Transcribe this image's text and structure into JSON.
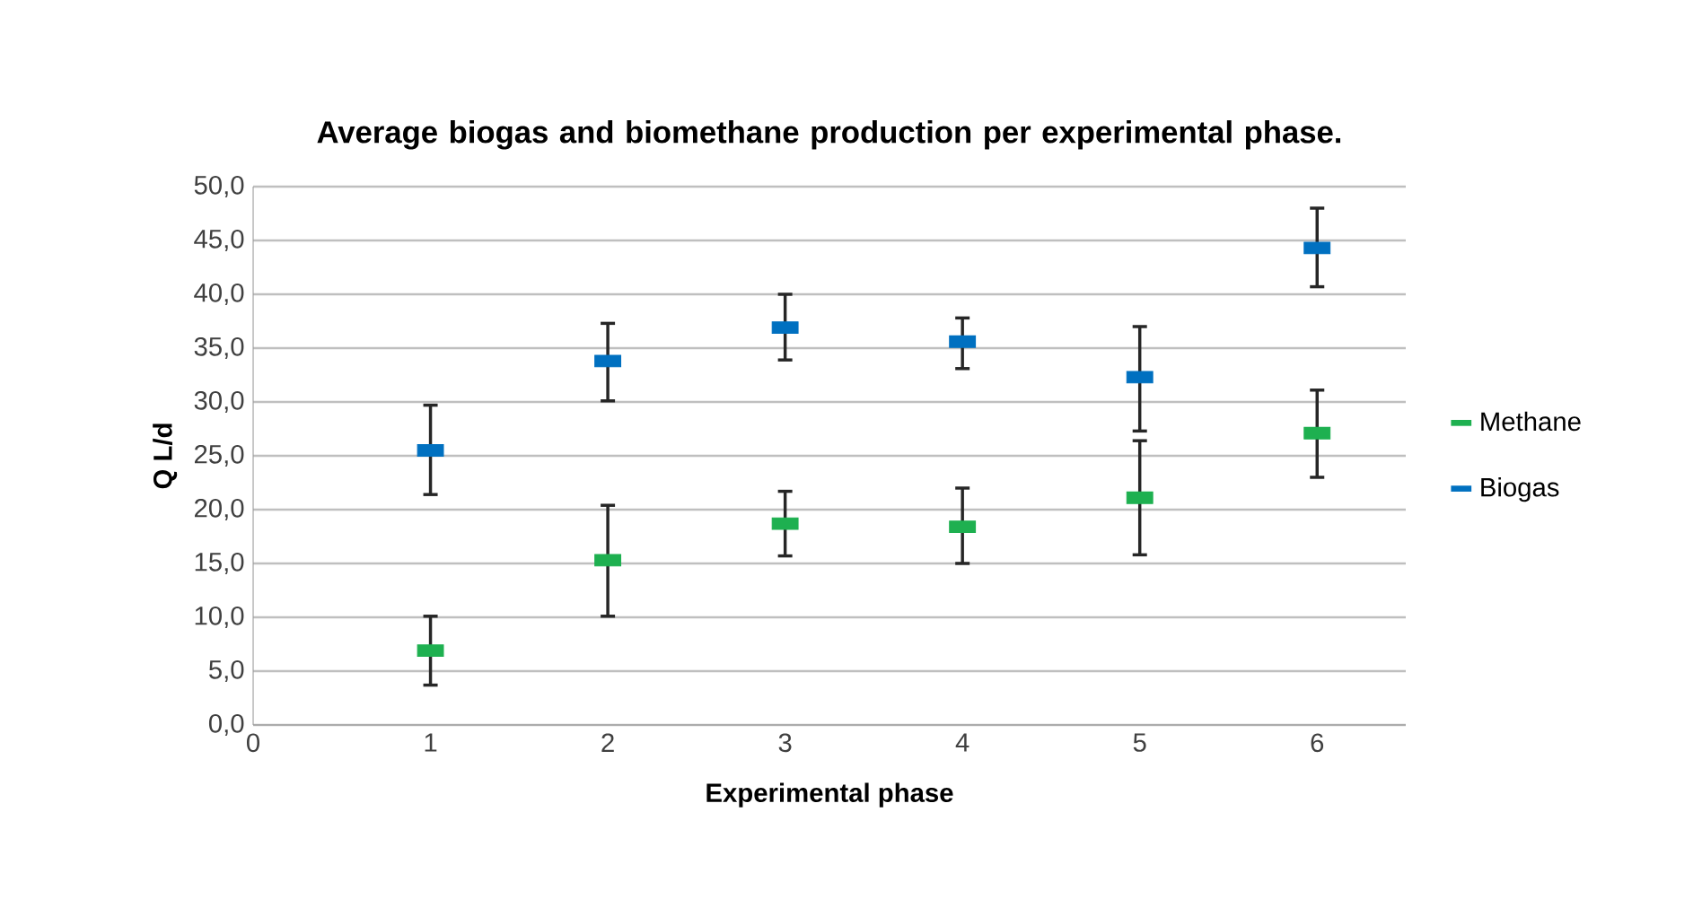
{
  "chart_data": {
    "type": "scatter",
    "title": "Average biogas and biomethane production per experimental phase.",
    "xlabel": "Experimental phase",
    "ylabel": "Q L/d",
    "x": [
      1,
      2,
      3,
      4,
      5,
      6
    ],
    "series": [
      {
        "name": "Methane",
        "color": "#1eb050",
        "values": [
          6.9,
          15.3,
          18.7,
          18.4,
          21.1,
          27.1
        ],
        "errors": [
          [
            3.7,
            10.1
          ],
          [
            10.1,
            20.4
          ],
          [
            15.7,
            21.7
          ],
          [
            15.0,
            22.0
          ],
          [
            15.8,
            26.4
          ],
          [
            23.0,
            31.1
          ]
        ]
      },
      {
        "name": "Biogas",
        "color": "#0070c0",
        "values": [
          25.5,
          33.8,
          36.9,
          35.6,
          32.3,
          44.3
        ],
        "errors": [
          [
            21.4,
            29.7
          ],
          [
            30.1,
            37.3
          ],
          [
            33.9,
            40.0
          ],
          [
            33.1,
            37.8
          ],
          [
            27.3,
            37.0
          ],
          [
            40.7,
            48.0
          ]
        ]
      }
    ],
    "xlim": [
      0,
      6.5
    ],
    "xticks": [
      0,
      1,
      2,
      3,
      4,
      5,
      6
    ],
    "ylim": [
      0,
      50
    ],
    "yticks": [
      {
        "value": 0,
        "label": "0,0"
      },
      {
        "value": 5,
        "label": "5,0"
      },
      {
        "value": 10,
        "label": "10,0"
      },
      {
        "value": 15,
        "label": "15,0"
      },
      {
        "value": 20,
        "label": "20,0"
      },
      {
        "value": 25,
        "label": "25,0"
      },
      {
        "value": 30,
        "label": "30,0"
      },
      {
        "value": 35,
        "label": "35,0"
      },
      {
        "value": 40,
        "label": "40,0"
      },
      {
        "value": 45,
        "label": "45,0"
      },
      {
        "value": 50,
        "label": "50,0"
      }
    ],
    "grid": "y",
    "legend": "right"
  }
}
